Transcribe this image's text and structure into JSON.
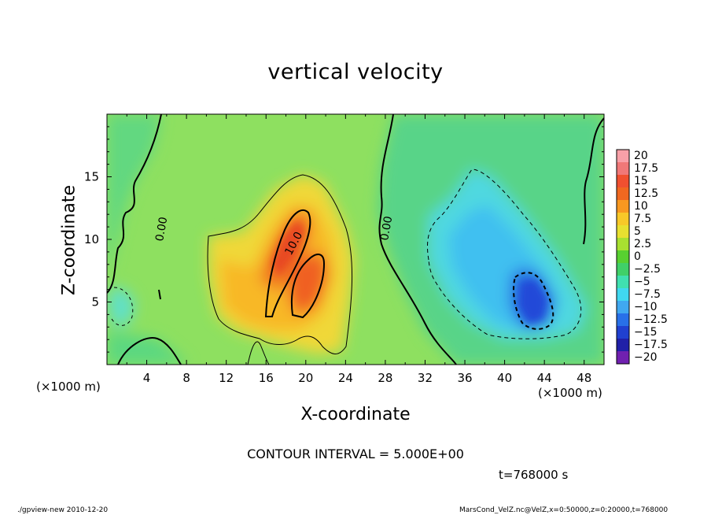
{
  "chart_data": {
    "type": "heatmap",
    "title": "vertical velocity",
    "xlabel": "X-coordinate",
    "ylabel": "Z-coordinate",
    "x_unit": "(×1000 m)",
    "y_unit": "(×1000 m)",
    "xlim": [
      0,
      50
    ],
    "ylim": [
      0,
      20
    ],
    "x_ticks": [
      4,
      8,
      12,
      16,
      20,
      24,
      28,
      32,
      36,
      40,
      44,
      48
    ],
    "y_ticks": [
      5,
      10,
      15
    ],
    "colorbar": {
      "levels": [
        20,
        17.5,
        15,
        12.5,
        10,
        7.5,
        5,
        2.5,
        0,
        -2.5,
        -5,
        -7.5,
        -10,
        -12.5,
        -15,
        -17.5,
        -20
      ],
      "labels": [
        "20",
        "17.5",
        "15",
        "12.5",
        "10",
        "7.5",
        "5",
        "2.5",
        "0",
        "−2.5",
        "−5",
        "−7.5",
        "−10",
        "−12.5",
        "−15",
        "−17.5",
        "−20"
      ],
      "colors": [
        "#f8a0a8",
        "#f07878",
        "#f05030",
        "#f06820",
        "#f89820",
        "#f8c828",
        "#e8e030",
        "#a8e030",
        "#58d030",
        "#40d068",
        "#40e0b0",
        "#40d8f0",
        "#40a8f0",
        "#2870e8",
        "#2040d0",
        "#2020a8",
        "#7020b0"
      ]
    },
    "contour_labels": [
      "0.00",
      "0.00",
      "10.0"
    ],
    "contour_interval": "CONTOUR INTERVAL = 5.000E+00",
    "time": "t=768000 s"
  },
  "footer": {
    "left": "./gpview-new   2010-12-20",
    "right": "MarsCond_VelZ.nc@VelZ,x=0:50000,z=0:20000,t=768000"
  }
}
